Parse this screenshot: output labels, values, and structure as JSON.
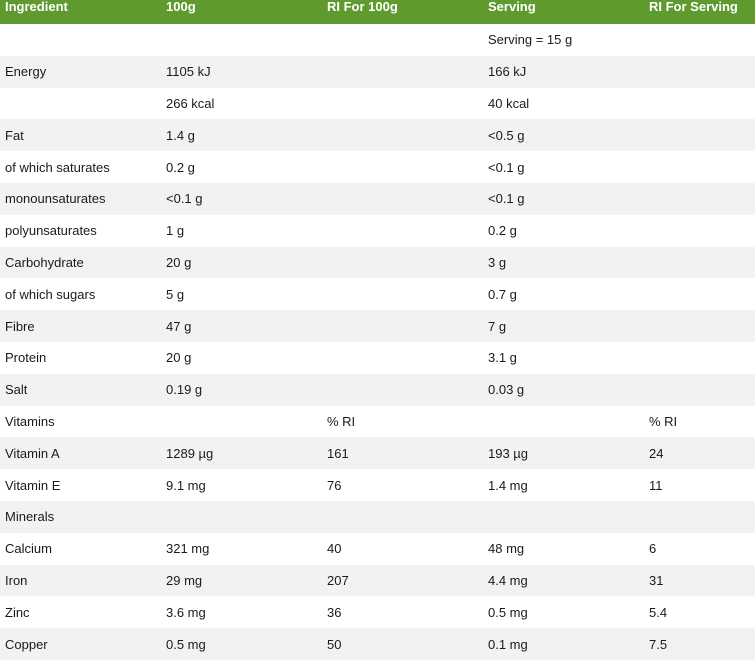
{
  "headers": [
    "Ingredient",
    "100g",
    "RI For 100g",
    "Serving",
    "RI For Serving"
  ],
  "rows": [
    [
      "",
      "",
      "",
      "Serving = 15 g",
      ""
    ],
    [
      "Energy",
      "1105 kJ",
      "",
      "166 kJ",
      ""
    ],
    [
      "",
      "266 kcal",
      "",
      "40 kcal",
      ""
    ],
    [
      "Fat",
      "1.4 g",
      "",
      "<0.5 g",
      ""
    ],
    [
      "of which saturates",
      "0.2 g",
      "",
      "<0.1 g",
      ""
    ],
    [
      "monounsaturates",
      "<0.1 g",
      "",
      "<0.1 g",
      ""
    ],
    [
      "polyunsaturates",
      "1 g",
      "",
      "0.2 g",
      ""
    ],
    [
      "Carbohydrate",
      "20 g",
      "",
      "3 g",
      ""
    ],
    [
      "of which sugars",
      "5 g",
      "",
      "0.7 g",
      ""
    ],
    [
      "Fibre",
      "47 g",
      "",
      "7 g",
      ""
    ],
    [
      "Protein",
      "20 g",
      "",
      "3.1 g",
      ""
    ],
    [
      "Salt",
      "0.19 g",
      "",
      "0.03 g",
      ""
    ],
    [
      "Vitamins",
      "",
      "% RI",
      "",
      "% RI"
    ],
    [
      "Vitamin A",
      "1289 µg",
      "161",
      "193 µg",
      "24"
    ],
    [
      "Vitamin E",
      "9.1 mg",
      "76",
      "1.4 mg",
      "11"
    ],
    [
      "Minerals",
      "",
      "",
      "",
      ""
    ],
    [
      "Calcium",
      "321 mg",
      "40",
      "48 mg",
      "6"
    ],
    [
      "Iron",
      "29 mg",
      "207",
      "4.4 mg",
      "31"
    ],
    [
      "Zinc",
      "3.6 mg",
      "36",
      "0.5 mg",
      "5.4"
    ],
    [
      "Copper",
      "0.5 mg",
      "50",
      "0.1 mg",
      "7.5"
    ]
  ],
  "colors": {
    "header_bg": "#5e9a2e",
    "header_text": "#ffffff",
    "stripe": "#f2f2f2"
  }
}
